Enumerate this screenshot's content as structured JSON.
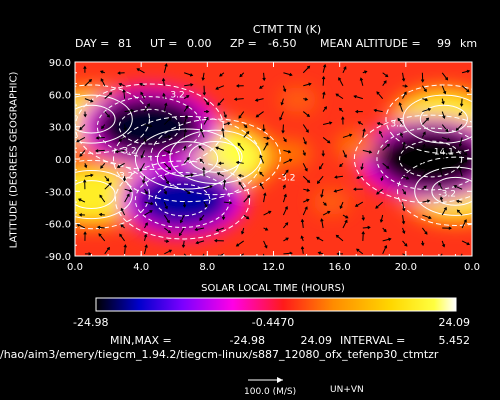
{
  "chart_data": {
    "type": "heatmap",
    "title": "CTMT TN (K)",
    "header": {
      "day_label": "DAY =",
      "day": "81",
      "ut_label": "UT =",
      "ut": "0.00",
      "zp_label": "ZP =",
      "zp": "-6.50",
      "alt_label": "MEAN ALTITUDE =",
      "alt": "99",
      "alt_unit": "km"
    },
    "xlabel": "SOLAR LOCAL TIME (HOURS)",
    "ylabel": "LATITUDE (DEGREES GEOGRAPHIC)",
    "xlim": [
      0,
      24
    ],
    "ylim": [
      -90,
      90
    ],
    "x_ticks": [
      "0.0",
      "4.0",
      "8.0",
      "12.0",
      "16.0",
      "20.0",
      "0.0"
    ],
    "y_ticks": [
      "90.0",
      "60.0",
      "30.0",
      "0.0",
      "-30.0",
      "-60.0",
      "-90.0"
    ],
    "contour_labels": [
      "3.2",
      "-3.2",
      "-3.2",
      "3.2",
      "-3.2",
      "-3.2",
      "14.1"
    ],
    "colorbar": {
      "min_label": "-24.98",
      "mid_label": "-0.4470",
      "max_label": "24.09"
    },
    "stats": {
      "minmax_label": "MIN,MAX =",
      "min": "-24.98",
      "max": "24.09",
      "interval_label": "INTERVAL =",
      "interval": "5.452"
    },
    "file_path": "/hao/aim3/emery/tiegcm_1.94.2/tiegcm-linux/s887_12080_ofx_tefenp30_ctmtzr",
    "vector_ref_label": "100.0 (M/S)",
    "vector_field_label": "UN+VN",
    "grid": false,
    "features": [
      {
        "lt": 6.8,
        "lat": 0,
        "value": 24
      },
      {
        "lt": 8.5,
        "lat": 2,
        "value": 20
      },
      {
        "lt": 1.0,
        "lat": 37,
        "value": 17
      },
      {
        "lt": 1.0,
        "lat": -33,
        "value": 17
      },
      {
        "lt": 22.3,
        "lat": 37,
        "value": 17
      },
      {
        "lt": 23.0,
        "lat": -30,
        "value": 17
      },
      {
        "lt": 4.5,
        "lat": 30,
        "value": -24
      },
      {
        "lt": 6.5,
        "lat": -38,
        "value": -21
      },
      {
        "lt": 21.5,
        "lat": 0,
        "value": -25
      },
      {
        "lt": 13.0,
        "lat": 5,
        "value": 4
      },
      {
        "lt": 17.0,
        "lat": 12,
        "value": 4
      },
      {
        "lt": 15.5,
        "lat": -40,
        "value": 3
      },
      {
        "lt": 13.5,
        "lat": 55,
        "value": 3
      }
    ]
  }
}
